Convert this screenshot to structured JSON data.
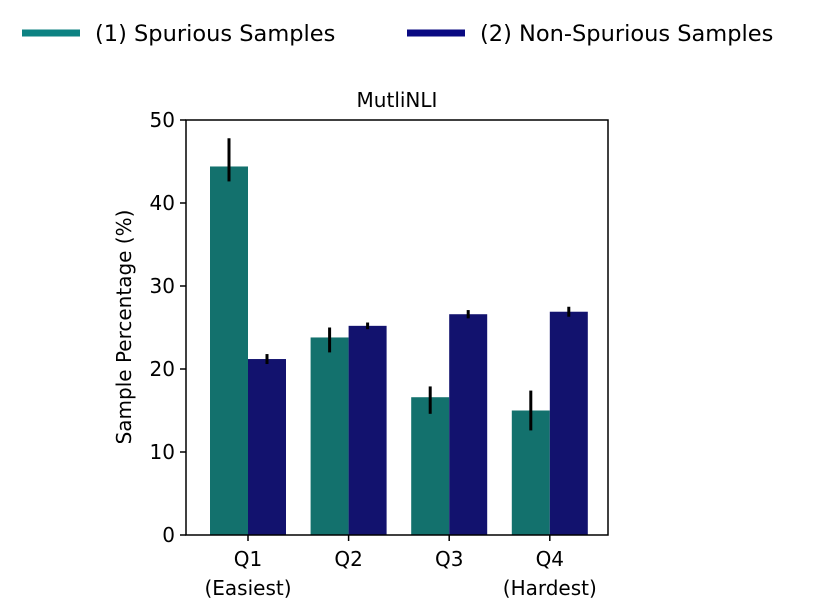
{
  "chart_data": {
    "type": "bar",
    "title": "MutliNLI",
    "xlabel": "",
    "ylabel": "Sample Percentage  (%)",
    "ylim": [
      0,
      50
    ],
    "yticks": [
      0,
      10,
      20,
      30,
      40,
      50
    ],
    "categories": [
      {
        "line1": "Q1",
        "line2": "(Easiest)"
      },
      {
        "line1": "Q2",
        "line2": ""
      },
      {
        "line1": "Q3",
        "line2": ""
      },
      {
        "line1": "Q4",
        "line2": "(Hardest)"
      }
    ],
    "series": [
      {
        "name": "(1) Spurious Samples",
        "color": "#13716d",
        "legend_color": "#0c8282",
        "values": [
          44.4,
          23.8,
          16.6,
          15.0
        ],
        "err_low": [
          42.6,
          22.0,
          14.6,
          12.6
        ],
        "err_high": [
          47.8,
          25.0,
          17.9,
          17.4
        ]
      },
      {
        "name": "(2) Non-Spurious Samples",
        "color": "#12126e",
        "legend_color": "#0a0a82",
        "values": [
          21.2,
          25.2,
          26.6,
          26.9
        ],
        "err_low": [
          20.6,
          24.8,
          26.1,
          26.3
        ],
        "err_high": [
          21.8,
          25.6,
          27.1,
          27.5
        ]
      }
    ],
    "legend_position": "top",
    "grid": false
  }
}
